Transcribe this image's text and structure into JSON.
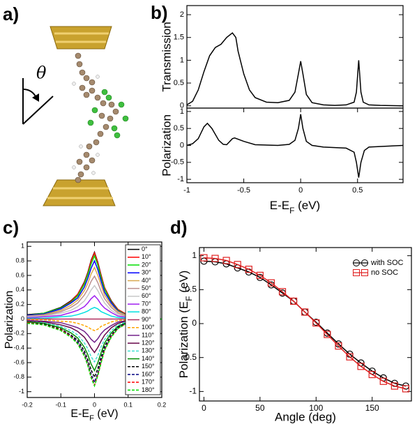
{
  "panel_labels": [
    "a)",
    "b)",
    "c)",
    "d)"
  ],
  "molecule": {
    "angle_symbol": "θ"
  },
  "chart_data": [
    {
      "type": "line",
      "ylabel": "Transmission",
      "color": "#000000",
      "xlim": [
        -1,
        0.9
      ],
      "ylim": [
        -0.05,
        2.2
      ],
      "yticks": [
        0,
        0.5,
        1,
        1.5,
        2
      ],
      "x": [
        -1,
        -0.95,
        -0.9,
        -0.85,
        -0.8,
        -0.75,
        -0.7,
        -0.65,
        -0.6,
        -0.57,
        -0.55,
        -0.5,
        -0.45,
        -0.4,
        -0.3,
        -0.2,
        -0.1,
        -0.05,
        -0.02,
        0,
        0.02,
        0.05,
        0.1,
        0.2,
        0.3,
        0.4,
        0.47,
        0.49,
        0.51,
        0.53,
        0.55,
        0.6,
        0.7,
        0.9
      ],
      "values": [
        0.02,
        0.1,
        0.35,
        0.75,
        1.1,
        1.28,
        1.35,
        1.5,
        1.6,
        1.5,
        1.2,
        0.7,
        0.35,
        0.18,
        0.08,
        0.07,
        0.12,
        0.3,
        0.7,
        0.98,
        0.7,
        0.25,
        0.07,
        0.02,
        0.01,
        0.02,
        0.08,
        0.3,
        1.0,
        0.3,
        0.08,
        0.02,
        0.01,
        0
      ]
    },
    {
      "type": "line",
      "ylabel": "Polarization",
      "xlabel": [
        "E-E",
        "F",
        " (eV)"
      ],
      "color": "#000000",
      "xlim": [
        -1,
        0.9
      ],
      "ylim": [
        -1.1,
        1.1
      ],
      "xticks": [
        -1,
        -0.5,
        0,
        0.5
      ],
      "yticks": [
        -1,
        -0.5,
        0,
        0.5,
        1
      ],
      "x": [
        -1,
        -0.95,
        -0.9,
        -0.85,
        -0.82,
        -0.78,
        -0.72,
        -0.68,
        -0.65,
        -0.6,
        -0.58,
        -0.5,
        -0.4,
        -0.2,
        -0.1,
        -0.05,
        -0.02,
        0,
        0.02,
        0.05,
        0.1,
        0.2,
        0.4,
        0.47,
        0.49,
        0.51,
        0.53,
        0.56,
        0.6,
        0.9
      ],
      "values": [
        0,
        0.05,
        0.2,
        0.55,
        0.65,
        0.5,
        0.15,
        0.03,
        0.02,
        0.2,
        0.22,
        0.12,
        0.02,
        0,
        0.03,
        0.15,
        0.5,
        0.92,
        0.5,
        0.12,
        0,
        -0.05,
        -0.08,
        -0.2,
        -0.5,
        -0.95,
        -0.5,
        -0.15,
        -0.05,
        0
      ]
    },
    {
      "type": "line",
      "ylabel": "Polarization",
      "xlabel": [
        "E-E",
        "F",
        " (eV)"
      ],
      "legend": "right",
      "xlim": [
        -0.2,
        0.2
      ],
      "ylim": [
        -1.08,
        1.06
      ],
      "xticks": [
        -0.2,
        -0.1,
        0,
        0.1,
        0.2
      ],
      "yticks": [
        -1,
        -0.8,
        -0.6,
        -0.4,
        -0.2,
        0,
        0.2,
        0.4,
        0.6,
        0.8,
        1
      ],
      "x": [
        -0.2,
        -0.15,
        -0.1,
        -0.07,
        -0.05,
        -0.03,
        -0.02,
        -0.01,
        0,
        0.01,
        0.02,
        0.03,
        0.05,
        0.07,
        0.1,
        0.15,
        0.2
      ],
      "series": [
        {
          "name": "0°",
          "color": "#000000",
          "dash": false,
          "values": [
            0.06,
            0.08,
            0.16,
            0.25,
            0.34,
            0.51,
            0.64,
            0.81,
            0.92,
            0.78,
            0.6,
            0.43,
            0.25,
            0.13,
            0.05,
            0.01,
            0
          ]
        },
        {
          "name": "10°",
          "color": "#ff0000",
          "dash": false,
          "values": [
            0.05,
            0.08,
            0.15,
            0.24,
            0.34,
            0.5,
            0.63,
            0.8,
            0.91,
            0.77,
            0.59,
            0.43,
            0.24,
            0.13,
            0.05,
            0.01,
            0
          ]
        },
        {
          "name": "20°",
          "color": "#00dd00",
          "dash": false,
          "values": [
            0.05,
            0.08,
            0.15,
            0.23,
            0.32,
            0.48,
            0.61,
            0.76,
            0.87,
            0.74,
            0.56,
            0.41,
            0.23,
            0.12,
            0.04,
            0.01,
            0
          ]
        },
        {
          "name": "30°",
          "color": "#0000ff",
          "dash": false,
          "values": [
            0.05,
            0.07,
            0.14,
            0.22,
            0.29,
            0.44,
            0.56,
            0.7,
            0.8,
            0.68,
            0.52,
            0.37,
            0.22,
            0.11,
            0.04,
            0.01,
            0
          ]
        },
        {
          "name": "40°",
          "color": "#d8a850",
          "dash": false,
          "values": [
            0.04,
            0.06,
            0.12,
            0.19,
            0.26,
            0.39,
            0.49,
            0.62,
            0.71,
            0.6,
            0.46,
            0.33,
            0.19,
            0.1,
            0.04,
            0.01,
            0
          ]
        },
        {
          "name": "50°",
          "color": "#bc8f8f",
          "dash": false,
          "values": [
            0.04,
            0.05,
            0.1,
            0.16,
            0.22,
            0.33,
            0.41,
            0.52,
            0.59,
            0.5,
            0.38,
            0.28,
            0.16,
            0.08,
            0.03,
            0.01,
            0
          ]
        },
        {
          "name": "60°",
          "color": "#c8c8c8",
          "dash": false,
          "values": [
            0.03,
            0.04,
            0.08,
            0.12,
            0.17,
            0.25,
            0.32,
            0.4,
            0.46,
            0.39,
            0.3,
            0.22,
            0.12,
            0.06,
            0.02,
            0,
            0
          ]
        },
        {
          "name": "70°",
          "color": "#a020f0",
          "dash": false,
          "values": [
            0.02,
            0.03,
            0.05,
            0.09,
            0.12,
            0.17,
            0.22,
            0.28,
            0.32,
            0.27,
            0.2,
            0.15,
            0.09,
            0.04,
            0.02,
            0,
            0
          ]
        },
        {
          "name": "80°",
          "color": "#00e0e0",
          "dash": false,
          "values": [
            0.01,
            0.01,
            0.03,
            0.04,
            0.06,
            0.09,
            0.11,
            0.14,
            0.16,
            0.14,
            0.1,
            0.08,
            0.04,
            0.02,
            0.01,
            0,
            0
          ]
        },
        {
          "name": "90°",
          "color": "#b03060",
          "dash": false,
          "values": [
            0,
            0,
            0,
            0,
            0,
            0,
            0,
            0,
            0,
            0,
            0,
            0,
            0,
            0,
            0,
            0,
            0
          ]
        },
        {
          "name": "100°",
          "color": "#ffa500",
          "dash": true,
          "values": [
            -0.01,
            -0.01,
            -0.03,
            -0.04,
            -0.06,
            -0.09,
            -0.11,
            -0.14,
            -0.16,
            -0.14,
            -0.1,
            -0.08,
            -0.04,
            -0.02,
            -0.01,
            0,
            0
          ]
        },
        {
          "name": "110°",
          "color": "#72218a",
          "dash": false,
          "values": [
            -0.02,
            -0.03,
            -0.05,
            -0.09,
            -0.12,
            -0.17,
            -0.22,
            -0.28,
            -0.32,
            -0.27,
            -0.2,
            -0.15,
            -0.09,
            -0.04,
            -0.02,
            0,
            0
          ]
        },
        {
          "name": "120°",
          "color": "#67074a",
          "dash": false,
          "values": [
            -0.03,
            -0.04,
            -0.08,
            -0.12,
            -0.17,
            -0.25,
            -0.32,
            -0.4,
            -0.46,
            -0.39,
            -0.3,
            -0.22,
            -0.12,
            -0.06,
            -0.02,
            0,
            0
          ]
        },
        {
          "name": "130°",
          "color": "#40e0d0",
          "dash": true,
          "values": [
            -0.04,
            -0.05,
            -0.1,
            -0.16,
            -0.22,
            -0.33,
            -0.41,
            -0.52,
            -0.59,
            -0.5,
            -0.38,
            -0.28,
            -0.16,
            -0.08,
            -0.03,
            -0.01,
            0
          ]
        },
        {
          "name": "140°",
          "color": "#008b00",
          "dash": false,
          "values": [
            -0.04,
            -0.06,
            -0.12,
            -0.19,
            -0.26,
            -0.39,
            -0.49,
            -0.62,
            -0.71,
            -0.6,
            -0.46,
            -0.33,
            -0.19,
            -0.1,
            -0.04,
            -0.01,
            0
          ]
        },
        {
          "name": "150°",
          "color": "#000000",
          "dash": true,
          "values": [
            -0.05,
            -0.07,
            -0.14,
            -0.22,
            -0.29,
            -0.44,
            -0.56,
            -0.7,
            -0.8,
            -0.68,
            -0.52,
            -0.37,
            -0.22,
            -0.11,
            -0.04,
            -0.01,
            0
          ]
        },
        {
          "name": "160°",
          "color": "#000080",
          "dash": true,
          "values": [
            -0.05,
            -0.08,
            -0.15,
            -0.23,
            -0.32,
            -0.48,
            -0.61,
            -0.76,
            -0.87,
            -0.74,
            -0.56,
            -0.41,
            -0.23,
            -0.12,
            -0.04,
            -0.01,
            0
          ]
        },
        {
          "name": "170°",
          "color": "#ff0000",
          "dash": true,
          "values": [
            -0.05,
            -0.08,
            -0.15,
            -0.24,
            -0.34,
            -0.5,
            -0.63,
            -0.8,
            -0.91,
            -0.77,
            -0.59,
            -0.43,
            -0.24,
            -0.13,
            -0.05,
            -0.01,
            0
          ]
        },
        {
          "name": "180°",
          "color": "#00dd00",
          "dash": true,
          "values": [
            -0.06,
            -0.08,
            -0.16,
            -0.25,
            -0.34,
            -0.51,
            -0.64,
            -0.81,
            -0.92,
            -0.78,
            -0.6,
            -0.43,
            -0.25,
            -0.13,
            -0.05,
            -0.01,
            0
          ]
        }
      ]
    },
    {
      "type": "line",
      "ylabel": [
        "Polarization (E",
        "F",
        " (eV)"
      ],
      "xlabel": "Angle (deg)",
      "legend": "upper right",
      "xlim": [
        -4,
        185
      ],
      "ylim": [
        -1.14,
        1.12
      ],
      "xticks": [
        0,
        50,
        100,
        150
      ],
      "yticks": [
        -1,
        -0.5,
        0,
        0.5,
        1
      ],
      "x": [
        0,
        10,
        20,
        30,
        40,
        50,
        60,
        70,
        80,
        90,
        100,
        110,
        120,
        130,
        140,
        150,
        160,
        170,
        180
      ],
      "series": [
        {
          "name": "with SOC",
          "color": "#000000",
          "marker": "circle",
          "values": [
            0.92,
            0.91,
            0.88,
            0.82,
            0.76,
            0.68,
            0.57,
            0.45,
            0.33,
            0.17,
            0.02,
            -0.14,
            -0.3,
            -0.45,
            -0.58,
            -0.7,
            -0.8,
            -0.88,
            -0.92
          ]
        },
        {
          "name": "no SOC",
          "color": "#e02020",
          "marker": "square",
          "values": [
            0.97,
            0.96,
            0.93,
            0.87,
            0.8,
            0.71,
            0.6,
            0.47,
            0.33,
            0.17,
            0.01,
            -0.16,
            -0.33,
            -0.49,
            -0.63,
            -0.75,
            -0.85,
            -0.92,
            -0.96
          ]
        }
      ]
    }
  ]
}
